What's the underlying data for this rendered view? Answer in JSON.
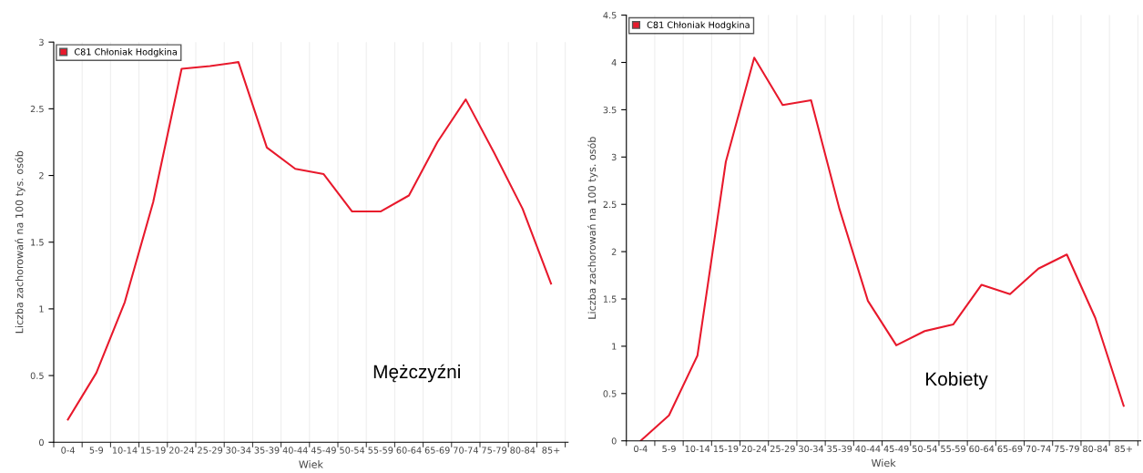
{
  "chart_data": [
    {
      "type": "line",
      "xlabel": "Wiek",
      "ylabel": "Liczba zachorowań na 100 tys. osób",
      "annotations": [
        "Mężczyźni"
      ],
      "categories": [
        "0-4",
        "5-9",
        "10-14",
        "15-19",
        "20-24",
        "25-29",
        "30-34",
        "35-39",
        "40-44",
        "45-49",
        "50-54",
        "55-59",
        "60-64",
        "65-69",
        "70-74",
        "75-79",
        "80-84",
        "85+"
      ],
      "series": [
        {
          "name": "C81 Chłoniak Hodgkina",
          "color": "#e8192c",
          "values": [
            0.17,
            0.52,
            1.05,
            1.8,
            2.8,
            2.82,
            2.85,
            2.21,
            2.05,
            2.01,
            1.73,
            1.73,
            1.85,
            2.25,
            2.57,
            2.17,
            1.75,
            1.19
          ]
        }
      ],
      "ylim": [
        0,
        3
      ],
      "yticks": [
        0,
        0.5,
        1,
        1.5,
        2,
        2.5,
        3
      ],
      "grid": "x",
      "legend": "top left",
      "marker": "none",
      "line_style": "solid"
    },
    {
      "type": "line",
      "xlabel": "Wiek",
      "ylabel": "Liczba zachorowań na 100 tys. osób",
      "annotations": [
        "Kobiety"
      ],
      "categories": [
        "0-4",
        "5-9",
        "10-14",
        "15-19",
        "20-24",
        "25-29",
        "30-34",
        "35-39",
        "40-44",
        "45-49",
        "50-54",
        "55-59",
        "60-64",
        "65-69",
        "70-74",
        "75-79",
        "80-84",
        "85+"
      ],
      "series": [
        {
          "name": "C81 Chłoniak Hodgkina",
          "color": "#e8192c",
          "values": [
            0,
            0.27,
            0.9,
            2.95,
            4.05,
            3.55,
            3.6,
            2.45,
            1.48,
            1.01,
            1.16,
            1.23,
            1.65,
            1.55,
            1.82,
            1.97,
            1.3,
            0.37
          ]
        }
      ],
      "ylim": [
        0,
        4.5
      ],
      "yticks": [
        0,
        0.5,
        1,
        1.5,
        2,
        2.5,
        3,
        3.5,
        4,
        4.5
      ],
      "grid": "x",
      "legend": "top left",
      "marker": "none",
      "line_style": "solid"
    }
  ]
}
